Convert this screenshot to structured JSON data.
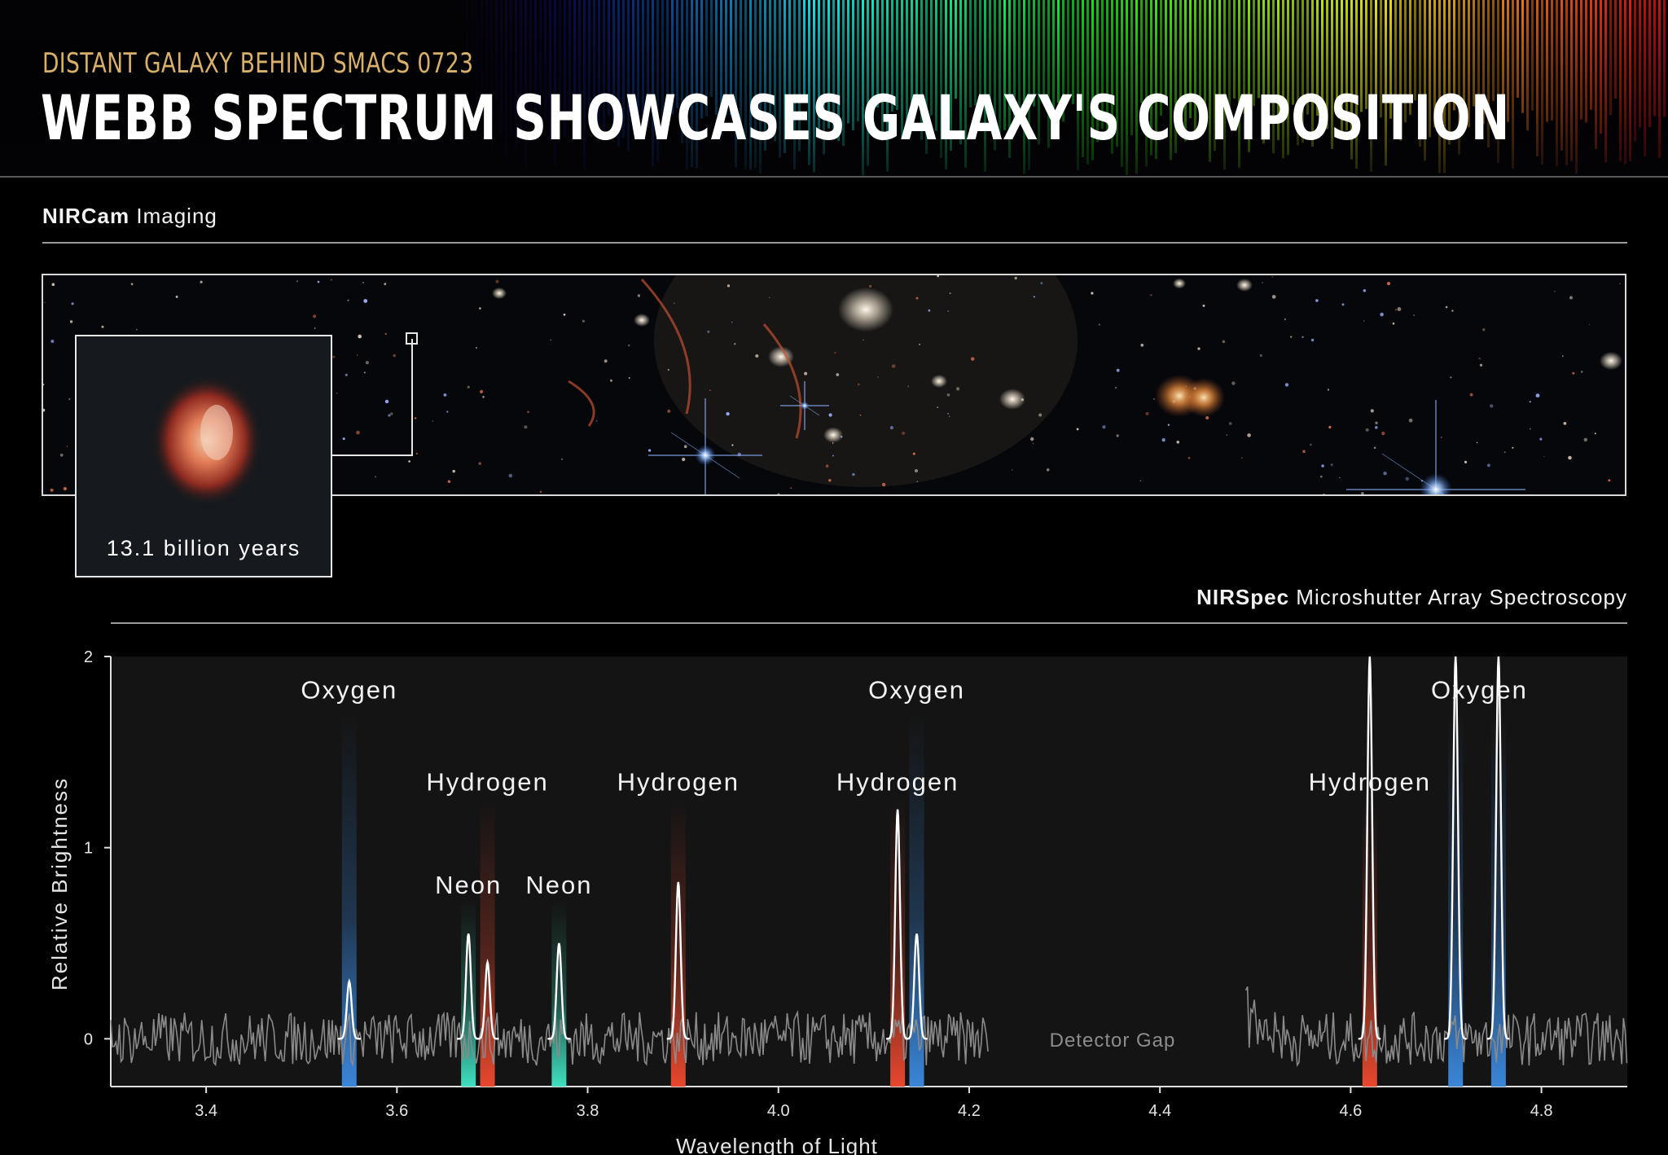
{
  "header": {
    "kicker": "DISTANT GALAXY BEHIND SMACS 0723",
    "title": "WEBB SPECTRUM SHOWCASES GALAXY'S COMPOSITION"
  },
  "imaging": {
    "instrument": "NIRCam",
    "mode": "Imaging",
    "inset_caption": "13.1 billion years"
  },
  "spectroscopy": {
    "instrument": "NIRSpec",
    "mode": "Microshutter Array Spectroscopy"
  },
  "colors": {
    "oxygen": "#3a86d9",
    "hydrogen": "#e8482e",
    "neon": "#3fe0c0",
    "spectrum": "#ffffff",
    "noise": "#8a8a8a",
    "plot_bg": "#141414"
  },
  "chart_data": {
    "type": "line",
    "xlabel": "Wavelength of Light",
    "ylabel": "Relative Brightness",
    "xlim": [
      3.3,
      4.89
    ],
    "ylim": [
      -0.25,
      2
    ],
    "xticks": [
      "3.4",
      "3.6",
      "3.8",
      "4.0",
      "4.2",
      "4.4",
      "4.6",
      "4.8"
    ],
    "yticks": [
      "0",
      "1",
      "2"
    ],
    "grid": false,
    "detector_gap": {
      "label": "Detector Gap",
      "range": [
        4.22,
        4.49
      ]
    },
    "lines": [
      {
        "element": "Oxygen",
        "x": 3.55,
        "peak": 0.3
      },
      {
        "element": "Neon",
        "x": 3.675,
        "peak": 0.55
      },
      {
        "element": "Hydrogen",
        "x": 3.695,
        "peak": 0.4
      },
      {
        "element": "Neon",
        "x": 3.77,
        "peak": 0.5
      },
      {
        "element": "Hydrogen",
        "x": 3.895,
        "peak": 0.82
      },
      {
        "element": "Hydrogen",
        "x": 4.125,
        "peak": 1.2
      },
      {
        "element": "Oxygen",
        "x": 4.145,
        "peak": 0.55
      },
      {
        "element": "Hydrogen",
        "x": 4.62,
        "peak": 2.0
      },
      {
        "element": "Oxygen",
        "x": 4.71,
        "peak": 2.0
      },
      {
        "element": "Oxygen",
        "x": 4.755,
        "peak": 2.0
      }
    ],
    "annotations": [
      {
        "text": "Oxygen",
        "x": 3.55,
        "y": 1.78
      },
      {
        "text": "Hydrogen",
        "x": 3.695,
        "y": 1.3
      },
      {
        "text": "Neon",
        "x": 3.675,
        "y": 0.76
      },
      {
        "text": "Neon",
        "x": 3.77,
        "y": 0.76
      },
      {
        "text": "Hydrogen",
        "x": 3.895,
        "y": 1.3
      },
      {
        "text": "Hydrogen",
        "x": 4.125,
        "y": 1.3
      },
      {
        "text": "Oxygen",
        "x": 4.145,
        "y": 1.78
      },
      {
        "text": "Hydrogen",
        "x": 4.62,
        "y": 1.3
      },
      {
        "text": "Oxygen",
        "x": 4.735,
        "y": 1.78
      }
    ]
  }
}
